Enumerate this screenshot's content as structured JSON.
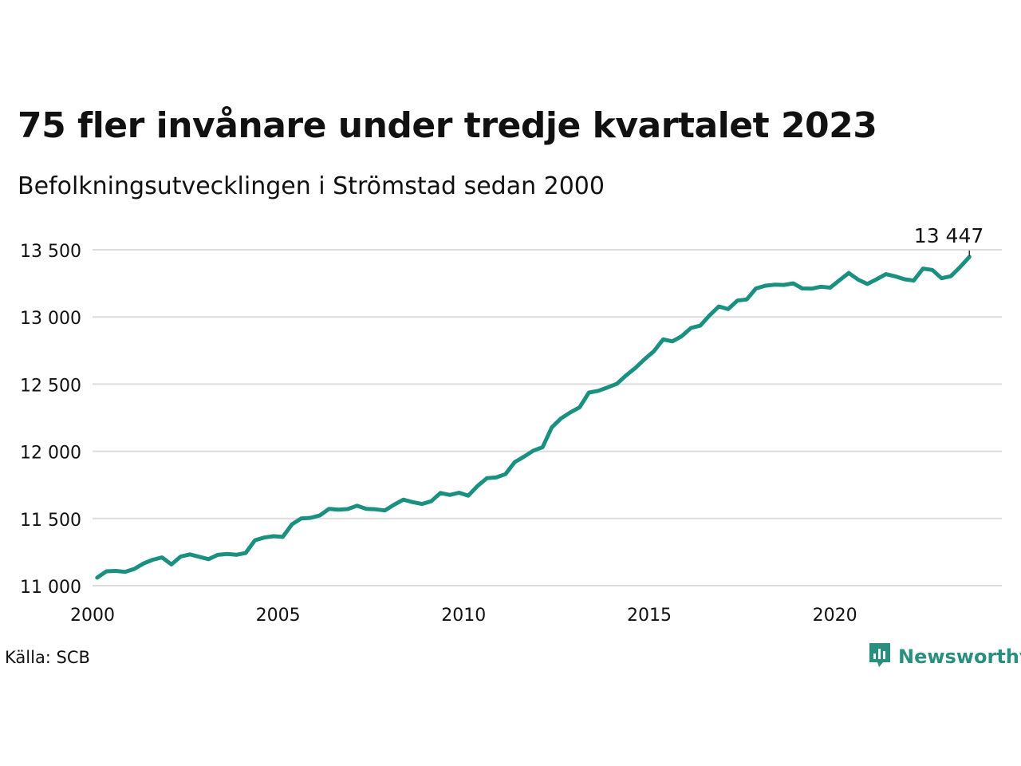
{
  "header": {
    "title": "75 fler invånare under tredje kvartalet 2023",
    "subtitle": "Befolkningsutvecklingen i Strömstad sedan 2000"
  },
  "footer": {
    "source": "Källa: SCB",
    "brand": "Newsworthy",
    "brand_icon": "newsworthy-logo-icon",
    "brand_color": "#2a8f7e"
  },
  "chart_data": {
    "type": "line",
    "title": "75 fler invånare under tredje kvartalet 2023",
    "subtitle": "Befolkningsutvecklingen i Strömstad sedan 2000",
    "xlabel": "",
    "ylabel": "",
    "xlim": [
      2000,
      2024.5
    ],
    "ylim": [
      11000,
      13500
    ],
    "grid": "horizontal",
    "line_color": "#1a9080",
    "x_ticks": [
      2000,
      2005,
      2010,
      2015,
      2020
    ],
    "x_tick_labels": [
      "2000",
      "2005",
      "2010",
      "2015",
      "2020"
    ],
    "y_ticks": [
      11000,
      11500,
      12000,
      12500,
      13000,
      13500
    ],
    "y_tick_labels": [
      "11 000",
      "11 500",
      "12 000",
      "12 500",
      "13 000",
      "13 500"
    ],
    "end_label": "13 447",
    "series": [
      {
        "x": [
          2000.125,
          2000.375,
          2000.625,
          2000.875,
          2001.125,
          2001.375,
          2001.625,
          2001.875,
          2002.125,
          2002.375,
          2002.625,
          2002.875,
          2003.125,
          2003.375,
          2003.625,
          2003.875,
          2004.125,
          2004.375,
          2004.625,
          2004.875,
          2005.125,
          2005.375,
          2005.625,
          2005.875,
          2006.125,
          2006.375,
          2006.625,
          2006.875,
          2007.125,
          2007.375,
          2007.625,
          2007.875,
          2008.125,
          2008.375,
          2008.625,
          2008.875,
          2009.125,
          2009.375,
          2009.625,
          2009.875,
          2010.125,
          2010.375,
          2010.625,
          2010.875,
          2011.125,
          2011.375,
          2011.625,
          2011.875,
          2012.125,
          2012.375,
          2012.625,
          2012.875,
          2013.125,
          2013.375,
          2013.625,
          2013.875,
          2014.125,
          2014.375,
          2014.625,
          2014.875,
          2015.125,
          2015.375,
          2015.625,
          2015.875,
          2016.125,
          2016.375,
          2016.625,
          2016.875,
          2017.125,
          2017.375,
          2017.625,
          2017.875,
          2018.125,
          2018.375,
          2018.625,
          2018.875,
          2019.125,
          2019.375,
          2019.625,
          2019.875,
          2020.125,
          2020.375,
          2020.625,
          2020.875,
          2021.125,
          2021.375,
          2021.625,
          2021.875,
          2022.125,
          2022.375,
          2022.625,
          2022.875,
          2023.125,
          2023.375,
          2023.625
        ],
        "values": [
          11060,
          11107,
          11110,
          11103,
          11125,
          11165,
          11193,
          11210,
          11158,
          11217,
          11233,
          11215,
          11197,
          11229,
          11236,
          11230,
          11243,
          11338,
          11358,
          11368,
          11363,
          11457,
          11500,
          11505,
          11523,
          11572,
          11566,
          11570,
          11595,
          11572,
          11568,
          11560,
          11603,
          11640,
          11622,
          11608,
          11628,
          11690,
          11675,
          11692,
          11670,
          11743,
          11800,
          11805,
          11830,
          11920,
          11960,
          12005,
          12030,
          12178,
          12245,
          12290,
          12328,
          12437,
          12450,
          12475,
          12502,
          12565,
          12620,
          12685,
          12745,
          12833,
          12818,
          12857,
          12918,
          12935,
          13012,
          13078,
          13058,
          13122,
          13130,
          13212,
          13232,
          13240,
          13238,
          13250,
          13212,
          13210,
          13225,
          13218,
          13273,
          13327,
          13278,
          13245,
          13280,
          13318,
          13302,
          13280,
          13271,
          13360,
          13350,
          13288,
          13303,
          13372,
          13447
        ]
      }
    ]
  }
}
